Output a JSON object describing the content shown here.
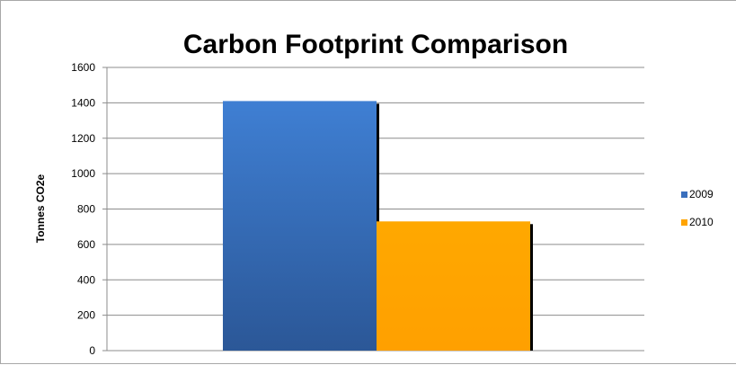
{
  "chart_data": {
    "type": "bar",
    "title": "Carbon Footprint Comparison",
    "xlabel": "",
    "ylabel": "Tonnes CO2e",
    "ylim": [
      0,
      1600
    ],
    "yticks": [
      0,
      200,
      400,
      600,
      800,
      1000,
      1200,
      1400,
      1600
    ],
    "grid": true,
    "legend_position": "right",
    "series": [
      {
        "name": "2009",
        "values": [
          1410
        ],
        "color": "#3a6fbd"
      },
      {
        "name": "2010",
        "values": [
          730
        ],
        "color": "#ffa400"
      }
    ]
  }
}
